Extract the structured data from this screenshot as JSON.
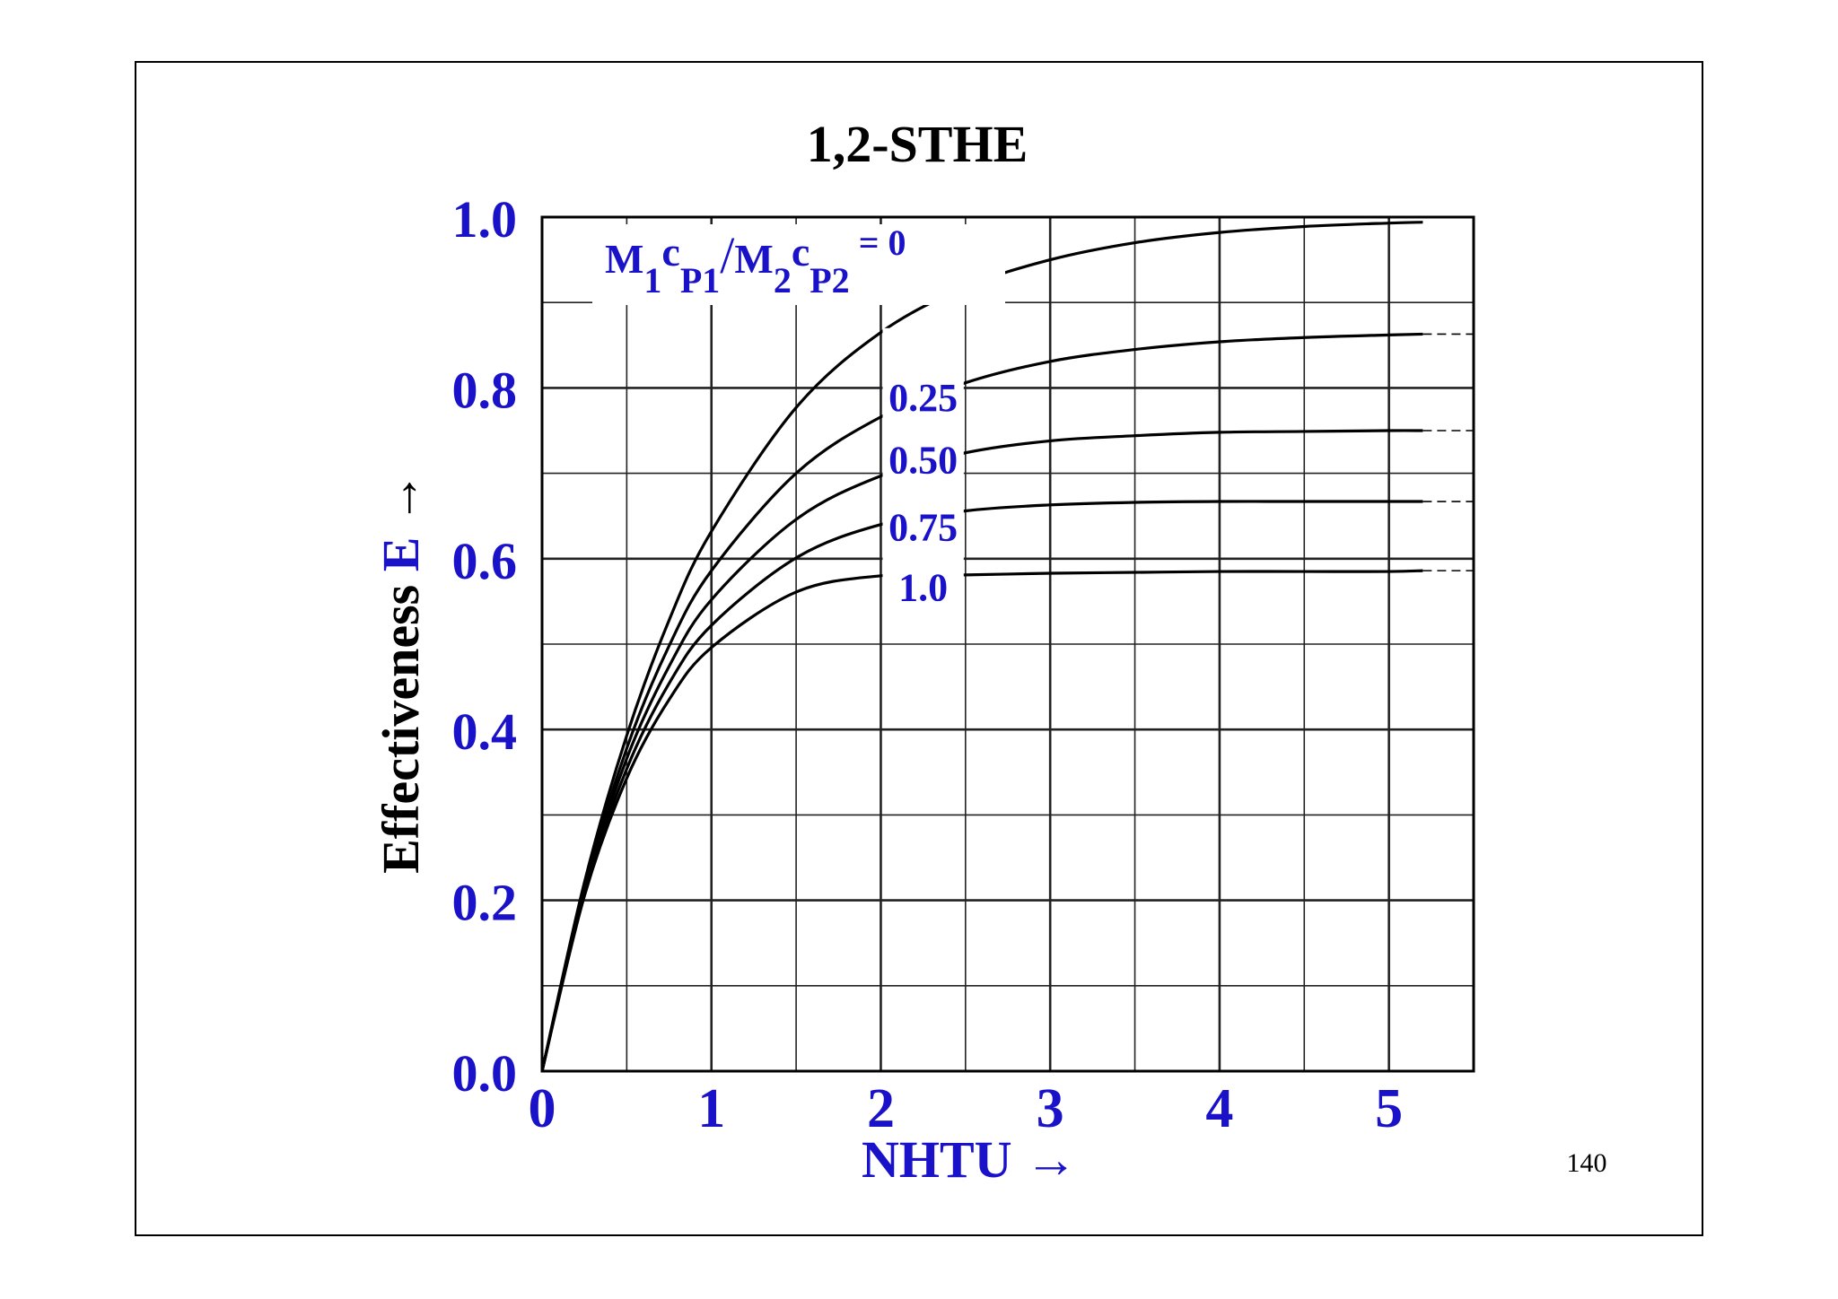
{
  "page_number": "140",
  "chart_data": {
    "type": "line",
    "title": "1,2-STHE",
    "xlabel": "NHTU →",
    "ylabel_prefix": "Effectiveness ",
    "ylabel_symbol": "E",
    "ylabel_arrow": " →",
    "legend_title": "M₁cₚ₁/M₂cₚ₂ = 0",
    "legend_title_parts": {
      "m1": "M",
      "sub1": "1",
      "c1": "c",
      "sub_p1": "P1",
      "slash": "/",
      "m2": "M",
      "sub2": "2",
      "c2": "c",
      "sub_p2": "P2",
      "eq": " = 0"
    },
    "xlim": [
      0,
      5.5
    ],
    "ylim": [
      0,
      1.0
    ],
    "x_ticks": [
      0,
      1,
      2,
      3,
      4,
      5
    ],
    "x_tick_labels": [
      "0",
      "1",
      "2",
      "3",
      "4",
      "5"
    ],
    "y_ticks": [
      0.0,
      0.2,
      0.4,
      0.6,
      0.8,
      1.0
    ],
    "y_tick_labels": [
      "0.0",
      "0.2",
      "0.4",
      "0.6",
      "0.8",
      "1.0"
    ],
    "grid": true,
    "x": [
      0,
      0.25,
      0.5,
      0.75,
      1.0,
      1.5,
      2.0,
      2.5,
      3.0,
      3.5,
      4.0,
      4.5,
      5.0,
      5.2
    ],
    "series": [
      {
        "name": "0",
        "values": [
          0.0,
          0.221,
          0.393,
          0.528,
          0.632,
          0.777,
          0.865,
          0.918,
          0.95,
          0.97,
          0.982,
          0.989,
          0.993,
          0.994
        ]
      },
      {
        "name": "0.25",
        "values": [
          0.0,
          0.215,
          0.378,
          0.498,
          0.586,
          0.7,
          0.766,
          0.806,
          0.831,
          0.845,
          0.854,
          0.859,
          0.862,
          0.863
        ]
      },
      {
        "name": "0.50",
        "values": [
          0.0,
          0.212,
          0.366,
          0.474,
          0.552,
          0.646,
          0.697,
          0.724,
          0.738,
          0.744,
          0.748,
          0.749,
          0.75,
          0.75
        ]
      },
      {
        "name": "0.75",
        "values": [
          0.0,
          0.209,
          0.354,
          0.454,
          0.522,
          0.601,
          0.64,
          0.656,
          0.663,
          0.666,
          0.667,
          0.667,
          0.667,
          0.667
        ]
      },
      {
        "name": "1.0",
        "values": [
          0.0,
          0.205,
          0.343,
          0.435,
          0.496,
          0.561,
          0.58,
          0.581,
          0.583,
          0.584,
          0.585,
          0.585,
          0.585,
          0.586
        ]
      }
    ]
  }
}
